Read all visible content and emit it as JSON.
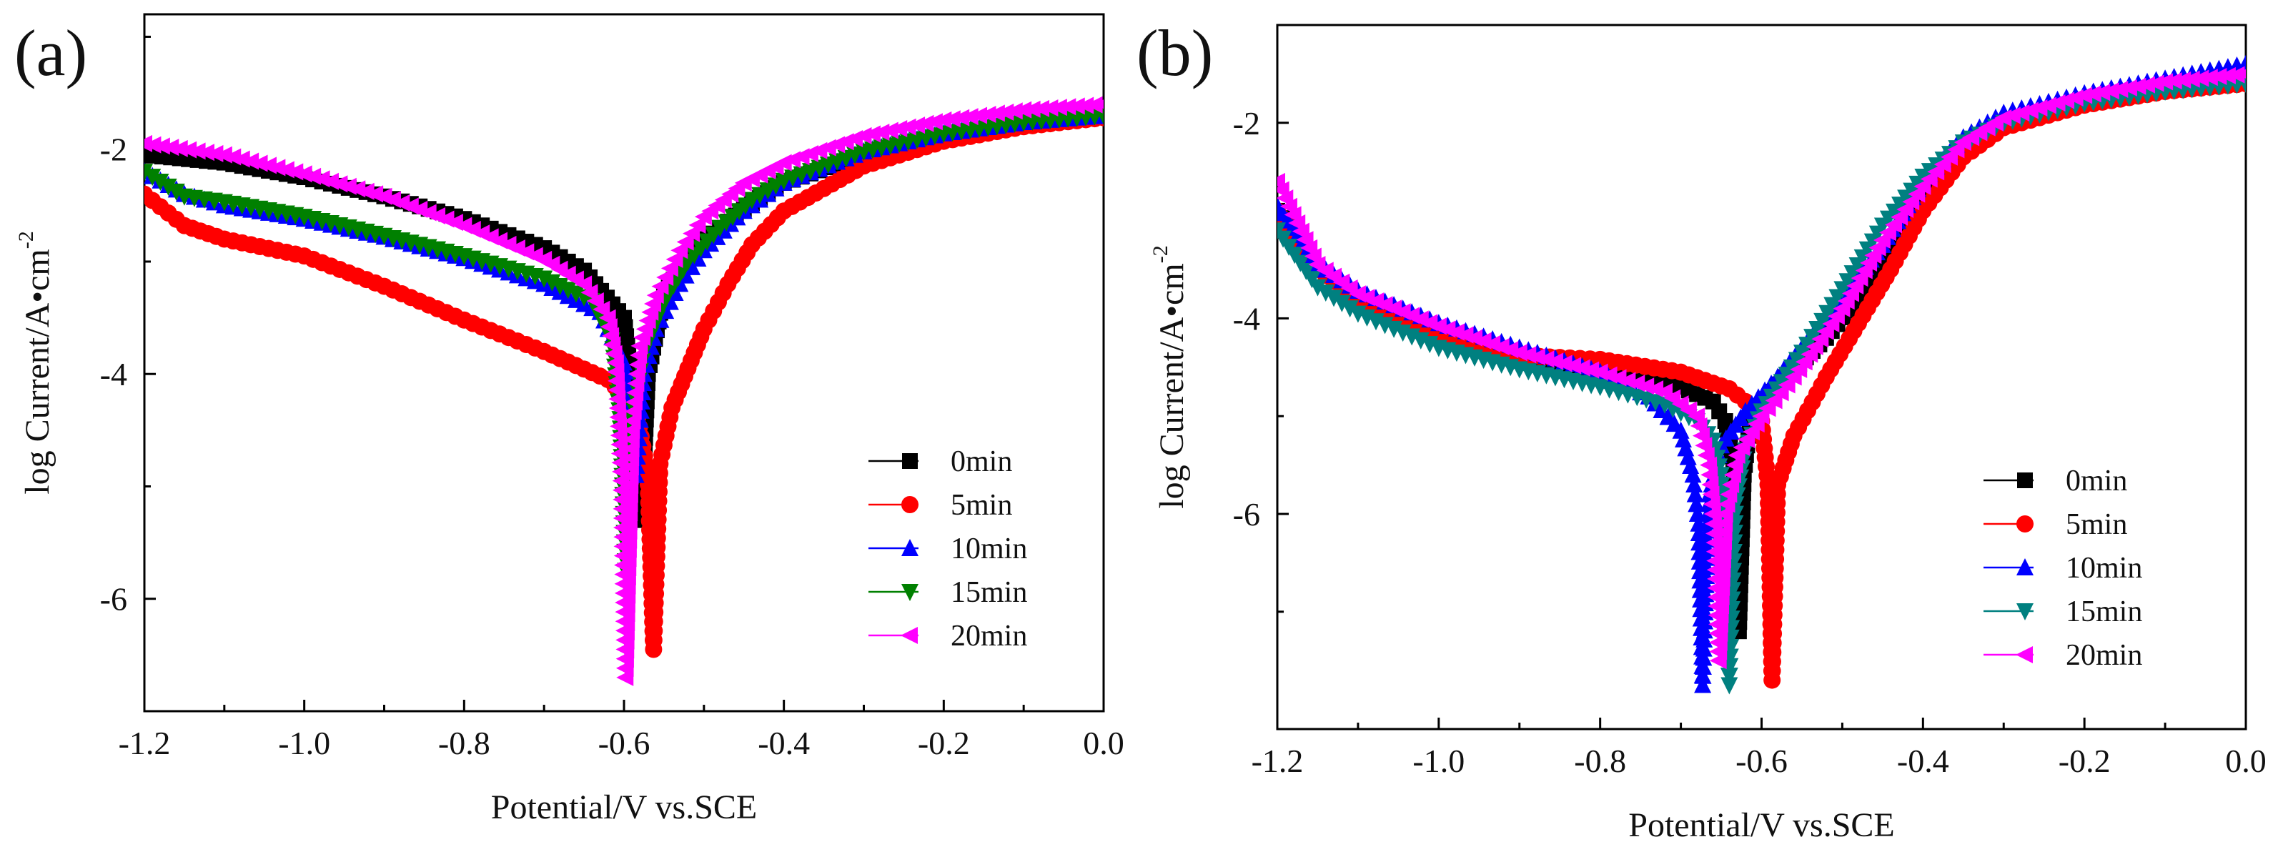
{
  "figure": {
    "panels": [
      "(a)",
      "(b)"
    ]
  },
  "chart_data": [
    {
      "type": "line",
      "panel_label": "(a)",
      "xlabel": "Potential/V vs.SCE",
      "ylabel": "log Current/A•cm",
      "ylabel_superscript": "-2",
      "xlim": [
        -1.2,
        0.0
      ],
      "ylim": [
        -7.0,
        -0.8
      ],
      "xticks": [
        -1.2,
        -1.0,
        -0.8,
        -0.6,
        -0.4,
        -0.2,
        0.0
      ],
      "xtick_labels": [
        "-1.2",
        "-1.0",
        "-0.8",
        "-0.6",
        "-0.4",
        "-0.2",
        "0.0"
      ],
      "yticks": [
        -6,
        -4,
        -2
      ],
      "ytick_labels": [
        "-6",
        "-4",
        "-2"
      ],
      "legend_position": "bottom-right",
      "series": [
        {
          "name": "0min",
          "color": "#000000",
          "marker": "square",
          "x": [
            -1.2,
            -1.1,
            -1.0,
            -0.9,
            -0.8,
            -0.7,
            -0.65,
            -0.6,
            -0.585,
            -0.578,
            -0.57,
            -0.55,
            -0.52,
            -0.48,
            -0.44,
            -0.4,
            -0.3,
            -0.2,
            -0.1,
            0.0
          ],
          "y": [
            -2.05,
            -2.12,
            -2.25,
            -2.42,
            -2.62,
            -2.88,
            -3.08,
            -3.5,
            -4.4,
            -5.3,
            -4.0,
            -3.3,
            -2.95,
            -2.7,
            -2.48,
            -2.3,
            -2.05,
            -1.88,
            -1.78,
            -1.7
          ]
        },
        {
          "name": "5min",
          "color": "#ff0000",
          "marker": "circle",
          "x": [
            -1.2,
            -1.15,
            -1.1,
            -1.0,
            -0.9,
            -0.8,
            -0.7,
            -0.62,
            -0.585,
            -0.57,
            -0.563,
            -0.555,
            -0.54,
            -0.52,
            -0.5,
            -0.47,
            -0.44,
            -0.4,
            -0.3,
            -0.2,
            -0.1,
            0.0
          ],
          "y": [
            -2.4,
            -2.68,
            -2.8,
            -2.95,
            -3.22,
            -3.52,
            -3.8,
            -4.05,
            -4.3,
            -4.9,
            -6.45,
            -4.8,
            -4.3,
            -3.95,
            -3.6,
            -3.2,
            -2.85,
            -2.55,
            -2.15,
            -1.93,
            -1.8,
            -1.72
          ]
        },
        {
          "name": "10min",
          "color": "#0000ff",
          "marker": "triangle-up",
          "x": [
            -1.2,
            -1.15,
            -1.1,
            -1.0,
            -0.9,
            -0.8,
            -0.7,
            -0.63,
            -0.6,
            -0.592,
            -0.585,
            -0.575,
            -0.56,
            -0.53,
            -0.5,
            -0.45,
            -0.4,
            -0.3,
            -0.2,
            -0.1,
            0.0
          ],
          "y": [
            -2.2,
            -2.4,
            -2.5,
            -2.62,
            -2.78,
            -2.97,
            -3.2,
            -3.45,
            -3.9,
            -4.3,
            -4.9,
            -4.0,
            -3.6,
            -3.2,
            -2.9,
            -2.55,
            -2.3,
            -2.02,
            -1.86,
            -1.76,
            -1.7
          ]
        },
        {
          "name": "15min",
          "color": "#008000",
          "marker": "triangle-down",
          "x": [
            -1.2,
            -1.15,
            -1.1,
            -1.0,
            -0.9,
            -0.8,
            -0.7,
            -0.64,
            -0.615,
            -0.605,
            -0.598,
            -0.59,
            -0.575,
            -0.55,
            -0.52,
            -0.48,
            -0.44,
            -0.4,
            -0.3,
            -0.2,
            -0.1,
            0.0
          ],
          "y": [
            -2.2,
            -2.42,
            -2.47,
            -2.6,
            -2.77,
            -2.95,
            -3.15,
            -3.35,
            -3.7,
            -4.4,
            -5.75,
            -4.4,
            -3.8,
            -3.35,
            -3.0,
            -2.7,
            -2.45,
            -2.28,
            -2.02,
            -1.86,
            -1.76,
            -1.7
          ]
        },
        {
          "name": "20min",
          "color": "#ff00ff",
          "marker": "triangle-left",
          "x": [
            -1.2,
            -1.1,
            -1.0,
            -0.9,
            -0.8,
            -0.7,
            -0.65,
            -0.62,
            -0.61,
            -0.603,
            -0.598,
            -0.59,
            -0.58,
            -0.56,
            -0.53,
            -0.5,
            -0.45,
            -0.4,
            -0.3,
            -0.2,
            -0.1,
            0.0
          ],
          "y": [
            -1.95,
            -2.05,
            -2.22,
            -2.42,
            -2.68,
            -2.98,
            -3.2,
            -3.5,
            -3.9,
            -4.95,
            -6.7,
            -4.5,
            -3.75,
            -3.3,
            -2.9,
            -2.6,
            -2.3,
            -2.12,
            -1.88,
            -1.74,
            -1.65,
            -1.6
          ]
        }
      ]
    },
    {
      "type": "line",
      "panel_label": "(b)",
      "xlabel": "Potential/V vs.SCE",
      "ylabel": "log Current/A•cm",
      "ylabel_superscript": "-2",
      "xlim": [
        -1.2,
        0.0
      ],
      "ylim": [
        -8.2,
        -1.0
      ],
      "xticks": [
        -1.2,
        -1.0,
        -0.8,
        -0.6,
        -0.4,
        -0.2,
        0.0
      ],
      "xtick_labels": [
        "-1.2",
        "-1.0",
        "-0.8",
        "-0.6",
        "-0.4",
        "-0.2",
        "0.0"
      ],
      "yticks": [
        -6,
        -4,
        -2
      ],
      "ytick_labels": [
        "-6",
        "-4",
        "-2"
      ],
      "legend_position": "bottom-right",
      "series": [
        {
          "name": "0min",
          "color": "#000000",
          "marker": "square",
          "x": [
            -1.2,
            -1.15,
            -1.1,
            -1.0,
            -0.9,
            -0.8,
            -0.7,
            -0.66,
            -0.645,
            -0.635,
            -0.628,
            -0.622,
            -0.615,
            -0.6,
            -0.57,
            -0.52,
            -0.45,
            -0.4,
            -0.35,
            -0.3,
            -0.2,
            -0.1,
            0.0
          ],
          "y": [
            -2.9,
            -3.5,
            -3.78,
            -4.12,
            -4.38,
            -4.55,
            -4.7,
            -4.85,
            -5.05,
            -5.5,
            -7.2,
            -5.6,
            -5.1,
            -4.9,
            -4.6,
            -4.2,
            -3.5,
            -2.75,
            -2.3,
            -2.0,
            -1.8,
            -1.65,
            -1.5
          ]
        },
        {
          "name": "5min",
          "color": "#ff0000",
          "marker": "circle",
          "x": [
            -1.2,
            -1.15,
            -1.1,
            -1.0,
            -0.9,
            -0.85,
            -0.8,
            -0.7,
            -0.64,
            -0.62,
            -0.6,
            -0.592,
            -0.587,
            -0.58,
            -0.56,
            -0.52,
            -0.48,
            -0.44,
            -0.4,
            -0.35,
            -0.3,
            -0.2,
            -0.1,
            0.0
          ],
          "y": [
            -2.9,
            -3.5,
            -3.8,
            -4.15,
            -4.38,
            -4.4,
            -4.42,
            -4.55,
            -4.72,
            -4.85,
            -5.05,
            -5.7,
            -7.7,
            -5.7,
            -5.2,
            -4.6,
            -4.05,
            -3.5,
            -2.9,
            -2.35,
            -2.05,
            -1.82,
            -1.68,
            -1.6
          ]
        },
        {
          "name": "10min",
          "color": "#0000ff",
          "marker": "triangle-up",
          "x": [
            -1.2,
            -1.15,
            -1.1,
            -1.0,
            -0.9,
            -0.8,
            -0.74,
            -0.7,
            -0.685,
            -0.678,
            -0.673,
            -0.665,
            -0.65,
            -0.62,
            -0.58,
            -0.52,
            -0.45,
            -0.4,
            -0.35,
            -0.3,
            -0.2,
            -0.1,
            0.0
          ],
          "y": [
            -2.85,
            -3.45,
            -3.72,
            -4.05,
            -4.3,
            -4.55,
            -4.8,
            -5.15,
            -5.6,
            -6.1,
            -7.75,
            -5.8,
            -5.3,
            -4.95,
            -4.6,
            -4.0,
            -3.25,
            -2.6,
            -2.15,
            -1.9,
            -1.7,
            -1.55,
            -1.4
          ]
        },
        {
          "name": "15min",
          "color": "#008080",
          "marker": "triangle-down",
          "x": [
            -1.2,
            -1.15,
            -1.1,
            -1.0,
            -0.9,
            -0.8,
            -0.72,
            -0.68,
            -0.66,
            -0.65,
            -0.645,
            -0.64,
            -0.632,
            -0.62,
            -0.6,
            -0.55,
            -0.5,
            -0.45,
            -0.4,
            -0.35,
            -0.3,
            -0.2,
            -0.1,
            0.0
          ],
          "y": [
            -3.1,
            -3.68,
            -3.95,
            -4.3,
            -4.52,
            -4.7,
            -4.88,
            -5.05,
            -5.25,
            -5.6,
            -6.5,
            -7.75,
            -5.9,
            -5.35,
            -4.95,
            -4.35,
            -3.7,
            -3.05,
            -2.55,
            -2.2,
            -2.0,
            -1.8,
            -1.68,
            -1.6
          ]
        },
        {
          "name": "20min",
          "color": "#ff00ff",
          "marker": "triangle-left",
          "x": [
            -1.2,
            -1.15,
            -1.1,
            -1.0,
            -0.9,
            -0.8,
            -0.72,
            -0.68,
            -0.665,
            -0.658,
            -0.653,
            -0.645,
            -0.63,
            -0.6,
            -0.56,
            -0.5,
            -0.45,
            -0.4,
            -0.35,
            -0.3,
            -0.2,
            -0.1,
            0.0
          ],
          "y": [
            -2.6,
            -3.45,
            -3.75,
            -4.08,
            -4.35,
            -4.55,
            -4.75,
            -5.0,
            -5.5,
            -6.2,
            -7.5,
            -6.0,
            -5.4,
            -5.0,
            -4.6,
            -3.9,
            -3.2,
            -2.65,
            -2.2,
            -1.95,
            -1.72,
            -1.58,
            -1.5
          ]
        }
      ]
    }
  ]
}
